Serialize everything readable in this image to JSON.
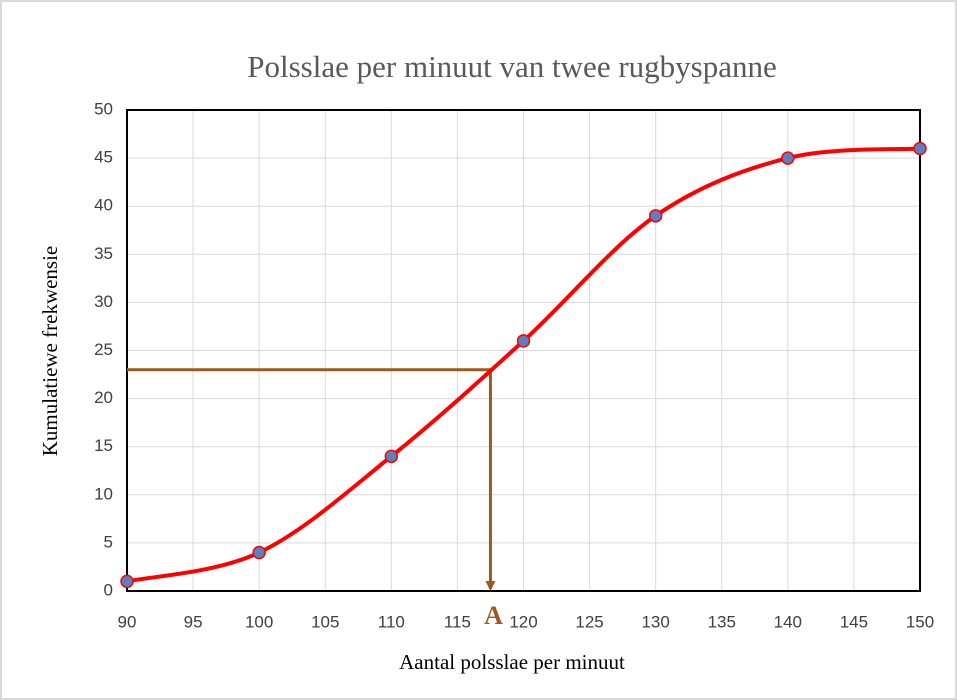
{
  "chart_data": {
    "type": "line",
    "title": "Polsslae per minuut van twee rugbyspanne",
    "xlabel": "Aantal polsslae per minuut",
    "ylabel": "Kumulatiewe frekwensie",
    "x": [
      90,
      100,
      110,
      120,
      130,
      140,
      150
    ],
    "values": [
      1,
      4,
      14,
      26,
      39,
      45,
      46
    ],
    "color": "#ff0000",
    "marker_color": "#5b80c0",
    "xlim": [
      90,
      150
    ],
    "xticks": [
      90,
      95,
      100,
      105,
      110,
      115,
      120,
      125,
      130,
      135,
      140,
      145,
      150
    ],
    "ylim": [
      0,
      50
    ],
    "yticks": [
      0,
      5,
      10,
      15,
      20,
      25,
      30,
      35,
      40,
      45,
      50
    ],
    "grid": true,
    "annotation": {
      "text": "A",
      "x": 117.5,
      "y": 23,
      "color": "#9c5a1a"
    }
  }
}
